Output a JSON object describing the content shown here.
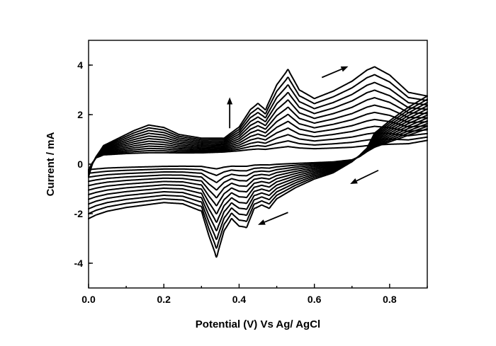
{
  "chart_data": {
    "type": "line",
    "title": "",
    "xlabel": "Potential (V) Vs Ag/ AgCl",
    "ylabel": "Current / mA",
    "xlim": [
      0.0,
      0.9
    ],
    "ylim": [
      -5,
      5
    ],
    "xticks": [
      0.0,
      0.2,
      0.4,
      0.6,
      0.8
    ],
    "xtick_labels": [
      "0.0",
      "0.2",
      "0.4",
      "0.6",
      "0.8"
    ],
    "yticks": [
      -4,
      -2,
      0,
      2,
      4
    ],
    "ytick_labels": [
      "-4",
      "-2",
      "0",
      "2",
      "4"
    ],
    "grid": false,
    "legend": "none",
    "cycles": 12,
    "anodic_envelope": {
      "x": [
        0.0,
        0.01,
        0.02,
        0.04,
        0.08,
        0.12,
        0.16,
        0.2,
        0.24,
        0.3,
        0.36,
        0.4,
        0.43,
        0.45,
        0.47,
        0.5,
        0.53,
        0.56,
        0.6,
        0.65,
        0.7,
        0.74,
        0.76,
        0.8,
        0.85,
        0.9
      ],
      "y": [
        -0.5,
        0.0,
        0.3,
        0.75,
        1.05,
        1.35,
        1.58,
        1.48,
        1.2,
        1.05,
        1.05,
        1.5,
        2.2,
        2.45,
        2.2,
        3.2,
        3.82,
        3.0,
        2.65,
        2.95,
        3.35,
        3.8,
        3.93,
        3.6,
        2.9,
        2.75
      ]
    },
    "anodic_inner": {
      "x": [
        0.0,
        0.01,
        0.02,
        0.04,
        0.1,
        0.2,
        0.3,
        0.4,
        0.45,
        0.5,
        0.53,
        0.6,
        0.7,
        0.76,
        0.85,
        0.9
      ],
      "y": [
        -0.2,
        0.05,
        0.25,
        0.35,
        0.38,
        0.4,
        0.42,
        0.48,
        0.5,
        0.5,
        0.52,
        0.5,
        0.52,
        0.58,
        0.7,
        0.85
      ]
    },
    "cathodic_envelope": {
      "x": [
        0.9,
        0.85,
        0.8,
        0.76,
        0.74,
        0.72,
        0.7,
        0.65,
        0.6,
        0.55,
        0.5,
        0.48,
        0.46,
        0.44,
        0.42,
        0.4,
        0.38,
        0.36,
        0.34,
        0.32,
        0.3,
        0.25,
        0.2,
        0.1,
        0.05,
        0.02,
        0.0
      ],
      "y": [
        2.75,
        2.3,
        1.75,
        1.25,
        0.65,
        0.35,
        0.1,
        -0.35,
        -0.6,
        -0.95,
        -1.4,
        -1.78,
        -1.65,
        -1.8,
        -2.55,
        -2.5,
        -2.2,
        -2.7,
        -3.75,
        -2.9,
        -1.9,
        -1.6,
        -1.55,
        -1.75,
        -1.9,
        -2.05,
        -2.2
      ]
    },
    "cathodic_inner": {
      "x": [
        0.9,
        0.85,
        0.8,
        0.76,
        0.74,
        0.72,
        0.7,
        0.65,
        0.6,
        0.5,
        0.4,
        0.35,
        0.3,
        0.2,
        0.1,
        0.05,
        0.02,
        0.0
      ],
      "y": [
        1.35,
        1.1,
        0.85,
        0.65,
        0.5,
        0.3,
        0.18,
        0.12,
        0.1,
        0.08,
        0.06,
        0.03,
        0.02,
        0.0,
        -0.03,
        -0.05,
        -0.08,
        -0.1
      ]
    },
    "annotations": [
      {
        "type": "arrow",
        "direction": "up",
        "from": [
          0.375,
          1.45
        ],
        "to": [
          0.375,
          2.7
        ]
      },
      {
        "type": "arrow",
        "direction": "up-right",
        "from": [
          0.62,
          3.5
        ],
        "to": [
          0.69,
          3.95
        ]
      },
      {
        "type": "arrow",
        "direction": "down-left",
        "from": [
          0.77,
          -0.25
        ],
        "to": [
          0.695,
          -0.8
        ]
      },
      {
        "type": "arrow",
        "direction": "down-left",
        "from": [
          0.53,
          -1.95
        ],
        "to": [
          0.45,
          -2.45
        ]
      }
    ]
  }
}
